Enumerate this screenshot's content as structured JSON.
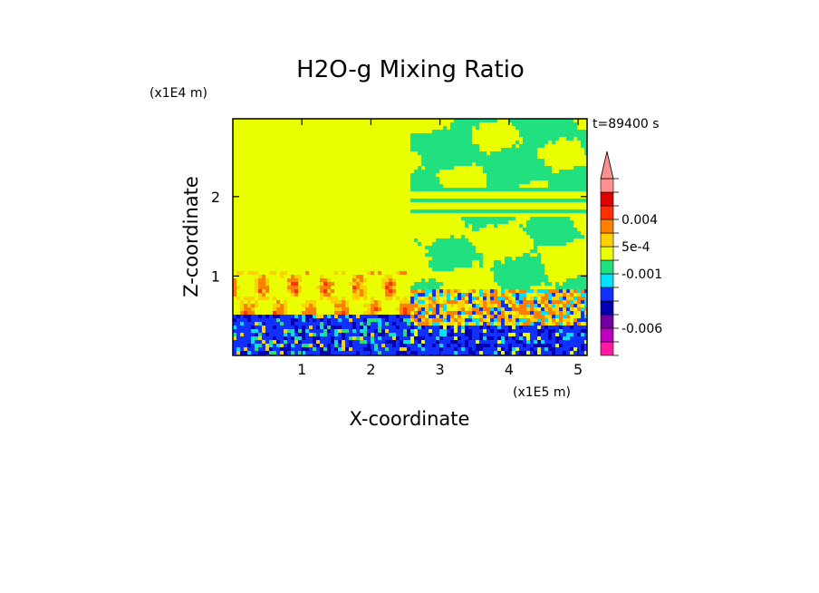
{
  "chart_data": {
    "type": "heatmap",
    "title": "H2O-g Mixing Ratio",
    "xlabel": "X-coordinate",
    "ylabel": "Z-coordinate",
    "x_scale_label": "(x1E5 m)",
    "z_scale_label": "(x1E4 m)",
    "time_label": "t=89400 s",
    "x_range": [
      0,
      5.13
    ],
    "z_range": [
      0,
      2.98
    ],
    "x_ticks": [
      {
        "value": 1,
        "label": "1"
      },
      {
        "value": 2,
        "label": "2"
      },
      {
        "value": 3,
        "label": "3"
      },
      {
        "value": 4,
        "label": "4"
      },
      {
        "value": 5,
        "label": "5"
      }
    ],
    "z_ticks": [
      {
        "value": 1,
        "label": "1"
      },
      {
        "value": 2,
        "label": "2"
      }
    ],
    "colorbar": {
      "levels": [
        {
          "color": "#ff1aa3"
        },
        {
          "color": "#c000c0"
        },
        {
          "color": "#7000a0"
        },
        {
          "color": "#0000b0"
        },
        {
          "color": "#1030ff"
        },
        {
          "color": "#00e0ff"
        },
        {
          "color": "#20e080"
        },
        {
          "color": "#eaff00"
        },
        {
          "color": "#ffd000"
        },
        {
          "color": "#ff8000"
        },
        {
          "color": "#ff3000"
        },
        {
          "color": "#e00000"
        },
        {
          "color": "#ff9090"
        }
      ],
      "labels": [
        {
          "text": "-0.006",
          "level_index": 2
        },
        {
          "text": "-0.001",
          "level_index": 6
        },
        {
          "text": "5e-4",
          "level_index": 8
        },
        {
          "text": "0.004",
          "level_index": 10
        }
      ],
      "extend": "max"
    },
    "regions": {
      "upper_left_value_color": "#eaff00",
      "upper_right_value_color": "#20e080",
      "lower_boundary_layer_color": "#1030ff",
      "left_band_top_z": 0.55,
      "right_domain_start_x": 2.55
    }
  }
}
